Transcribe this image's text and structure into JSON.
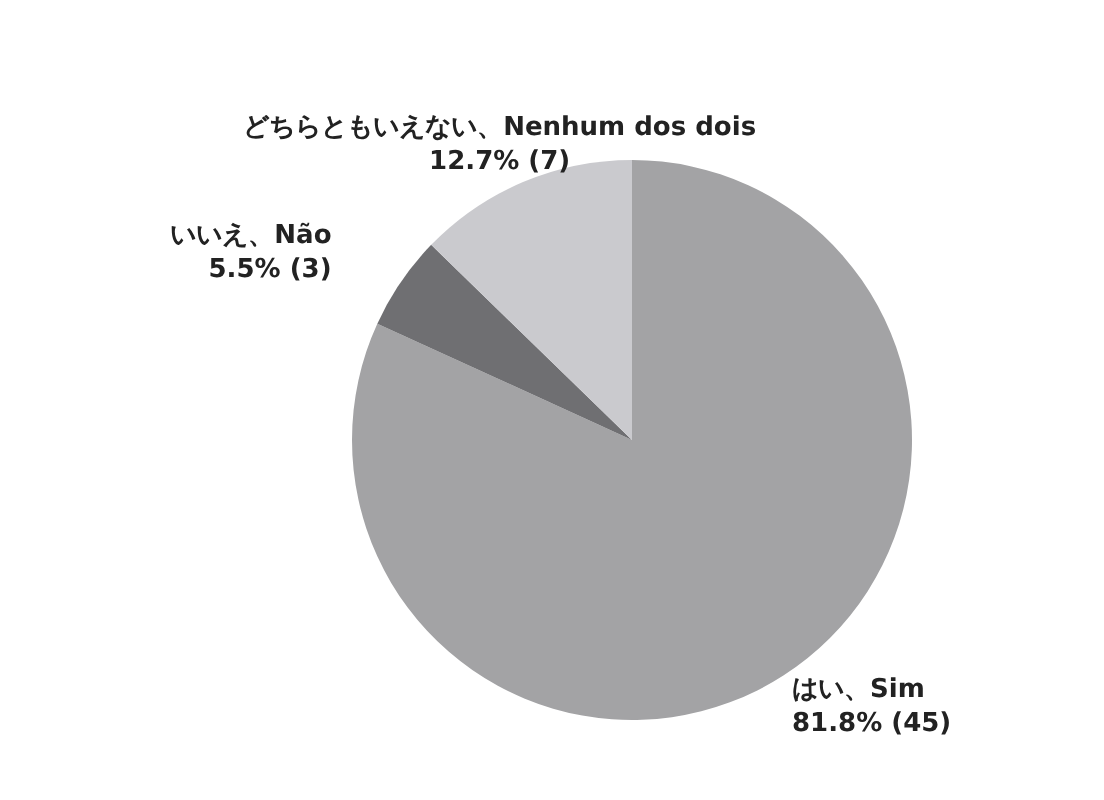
{
  "chart_data": {
    "type": "pie",
    "categories": [
      "はい、Sim",
      "いいえ、Não",
      "どちらともいえない、Nenhum dos dois"
    ],
    "values": [
      45,
      3,
      7
    ],
    "value_labels": [
      "81.8% (45)",
      "5.5% (3)",
      "12.7% (7)"
    ],
    "colors": [
      "#a3a3a5",
      "#6f6f72",
      "#cacace"
    ]
  }
}
